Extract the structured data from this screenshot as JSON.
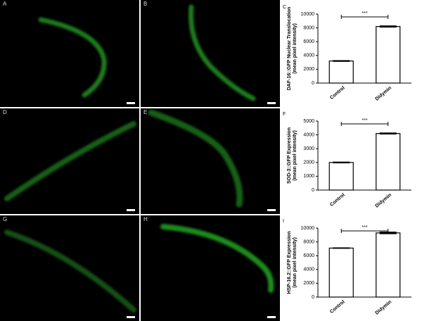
{
  "image_panels": [
    "A",
    "B",
    "D",
    "E",
    "G",
    "H"
  ],
  "chart_data": [
    {
      "type": "bar",
      "panel": "C",
      "ylabel": [
        "DAF-16::GFP Nuclear Translocation",
        "(mean pixel intensity)"
      ],
      "categories": [
        "Control",
        "Didymin"
      ],
      "values": [
        3200,
        8200
      ],
      "errors": [
        120,
        150
      ],
      "color": "#ffffff",
      "ylim": [
        0,
        10000
      ],
      "yticks": [
        0,
        2000,
        4000,
        6000,
        8000,
        10000
      ],
      "annotation": "***"
    },
    {
      "type": "bar",
      "panel": "F",
      "ylabel": [
        "SOD-3::GFP Expression",
        "(mean pixel intensity)"
      ],
      "categories": [
        "Control",
        "Didymin"
      ],
      "values": [
        2000,
        4100
      ],
      "errors": [
        60,
        70
      ],
      "color": "#ffffff",
      "ylim": [
        0,
        5000
      ],
      "yticks": [
        0,
        1000,
        2000,
        3000,
        4000,
        5000
      ],
      "annotation": "***"
    },
    {
      "type": "bar",
      "panel": "I",
      "ylabel": [
        "HSP-16.2::GFP Expression",
        "(mean pixel intensity)"
      ],
      "categories": [
        "Control",
        "Didymin"
      ],
      "values": [
        7100,
        9300
      ],
      "errors": [
        100,
        180
      ],
      "color": "#ffffff",
      "ylim": [
        0,
        10000
      ],
      "yticks": [
        0,
        2000,
        4000,
        6000,
        8000,
        10000
      ],
      "annotation": "***"
    }
  ]
}
